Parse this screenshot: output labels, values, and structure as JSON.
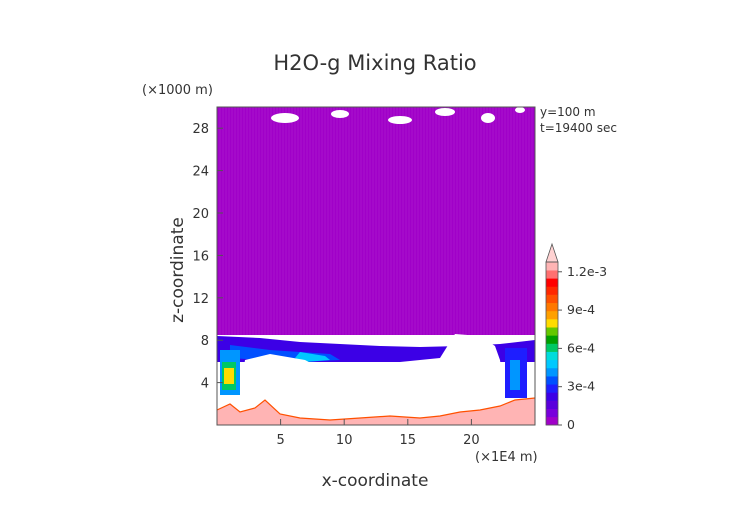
{
  "chart_data": {
    "type": "heatmap",
    "title": "H2O-g Mixing Ratio",
    "xlabel": "x-coordinate",
    "ylabel": "z-coordinate",
    "x_unit": "(×1E4 m)",
    "y_unit": "(×1000 m)",
    "annotations": [
      "y=100 m",
      "t=19400 sec"
    ],
    "x_range": [
      0,
      25
    ],
    "y_range": [
      0,
      30
    ],
    "x_ticks": [
      5,
      10,
      15,
      20
    ],
    "y_ticks": [
      4,
      8,
      12,
      16,
      20,
      24,
      28
    ],
    "colorbar": {
      "min": 0,
      "max": 0.0012,
      "tick_labels": [
        "0",
        "3e-4",
        "6e-4",
        "9e-4",
        "1.2e-3"
      ],
      "tick_values": [
        0,
        0.0003,
        0.0006,
        0.0009,
        0.0012
      ],
      "colors": [
        "#a000c8",
        "#7800dc",
        "#5a00dc",
        "#3c00e6",
        "#1e1eff",
        "#0050ff",
        "#0096ff",
        "#00c8ff",
        "#00dcdc",
        "#00c864",
        "#00a000",
        "#64c800",
        "#ffdc00",
        "#ffa000",
        "#ff7800",
        "#ff5000",
        "#ff2800",
        "#ff0000",
        "#ff7070",
        "#ffb4b4"
      ],
      "extend_max_color": "#ffd2d2"
    },
    "field_description": {
      "upper_layer_value": 0,
      "upper_layer_color": "#a000c8",
      "moist_layer_top_z": 8,
      "white_region": "values below plotted range"
    }
  }
}
